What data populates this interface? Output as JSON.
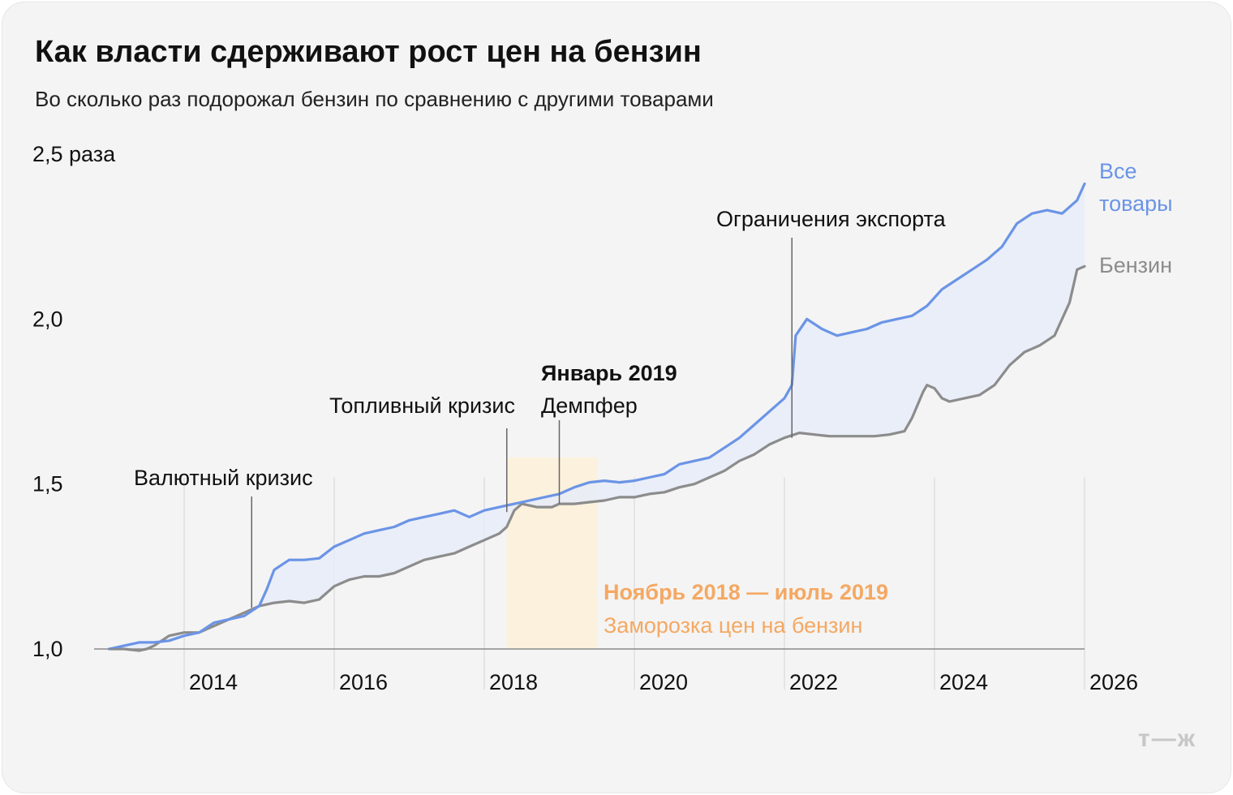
{
  "title": "Как власти сдерживают рост цен на бензин",
  "subtitle": "Во сколько раз подорожал бензин по сравнению с другими товарами",
  "logo": "т—ж",
  "colors": {
    "all_goods": "#6b94e6",
    "petrol": "#8c8c8c",
    "gap_fill": "#e6ecf8",
    "freeze_band": "#fcf1dc",
    "freeze_text": "#f5a862",
    "grid": "#d9d9d9",
    "axis": "#8a8a8a",
    "text": "#111111"
  },
  "chart_data": {
    "type": "line",
    "title": "Как власти сдерживают рост цен на бензин",
    "subtitle": "Во сколько раз подорожал бензин по сравнению с другими товарами",
    "xlim": [
      2012.8,
      2026.0
    ],
    "ylim": [
      1.0,
      2.5
    ],
    "x_ticks": [
      {
        "value": 2014,
        "label": "2014"
      },
      {
        "value": 2016,
        "label": "2016"
      },
      {
        "value": 2018,
        "label": "2018"
      },
      {
        "value": 2020,
        "label": "2020"
      },
      {
        "value": 2022,
        "label": "2022"
      },
      {
        "value": 2024,
        "label": "2024"
      },
      {
        "value": 2026,
        "label": "2026"
      }
    ],
    "y_ticks": [
      {
        "value": 1.0,
        "label": "1,0"
      },
      {
        "value": 1.5,
        "label": "1,5"
      },
      {
        "value": 2.0,
        "label": "2,0"
      },
      {
        "value": 2.5,
        "label": "2,5 раза"
      }
    ],
    "grid": "vertical",
    "series": [
      {
        "name": "Все товары",
        "legend": [
          "Все",
          "товары"
        ],
        "color": "#6b94e6",
        "points": [
          [
            2013.0,
            1.0
          ],
          [
            2013.2,
            1.01
          ],
          [
            2013.4,
            1.02
          ],
          [
            2013.6,
            1.02
          ],
          [
            2013.8,
            1.025
          ],
          [
            2014.0,
            1.04
          ],
          [
            2014.2,
            1.05
          ],
          [
            2014.4,
            1.08
          ],
          [
            2014.6,
            1.09
          ],
          [
            2014.8,
            1.1
          ],
          [
            2015.0,
            1.13
          ],
          [
            2015.1,
            1.18
          ],
          [
            2015.2,
            1.24
          ],
          [
            2015.4,
            1.27
          ],
          [
            2015.6,
            1.27
          ],
          [
            2015.8,
            1.275
          ],
          [
            2016.0,
            1.31
          ],
          [
            2016.2,
            1.33
          ],
          [
            2016.4,
            1.35
          ],
          [
            2016.6,
            1.36
          ],
          [
            2016.8,
            1.37
          ],
          [
            2017.0,
            1.39
          ],
          [
            2017.2,
            1.4
          ],
          [
            2017.4,
            1.41
          ],
          [
            2017.6,
            1.42
          ],
          [
            2017.8,
            1.4
          ],
          [
            2018.0,
            1.42
          ],
          [
            2018.2,
            1.43
          ],
          [
            2018.4,
            1.44
          ],
          [
            2018.6,
            1.45
          ],
          [
            2018.8,
            1.46
          ],
          [
            2019.0,
            1.47
          ],
          [
            2019.2,
            1.49
          ],
          [
            2019.4,
            1.505
          ],
          [
            2019.6,
            1.51
          ],
          [
            2019.8,
            1.505
          ],
          [
            2020.0,
            1.51
          ],
          [
            2020.2,
            1.52
          ],
          [
            2020.4,
            1.53
          ],
          [
            2020.6,
            1.56
          ],
          [
            2020.8,
            1.57
          ],
          [
            2021.0,
            1.58
          ],
          [
            2021.2,
            1.61
          ],
          [
            2021.4,
            1.64
          ],
          [
            2021.6,
            1.68
          ],
          [
            2021.8,
            1.72
          ],
          [
            2022.0,
            1.76
          ],
          [
            2022.1,
            1.8
          ],
          [
            2022.15,
            1.95
          ],
          [
            2022.3,
            2.0
          ],
          [
            2022.5,
            1.97
          ],
          [
            2022.7,
            1.95
          ],
          [
            2022.9,
            1.96
          ],
          [
            2023.1,
            1.97
          ],
          [
            2023.3,
            1.99
          ],
          [
            2023.5,
            2.0
          ],
          [
            2023.7,
            2.01
          ],
          [
            2023.9,
            2.04
          ],
          [
            2024.1,
            2.09
          ],
          [
            2024.3,
            2.12
          ],
          [
            2024.5,
            2.15
          ],
          [
            2024.7,
            2.18
          ],
          [
            2024.9,
            2.22
          ],
          [
            2025.1,
            2.29
          ],
          [
            2025.3,
            2.32
          ],
          [
            2025.5,
            2.33
          ],
          [
            2025.7,
            2.32
          ],
          [
            2025.9,
            2.36
          ],
          [
            2026.0,
            2.41
          ]
        ]
      },
      {
        "name": "Бензин",
        "legend": [
          "Бензин"
        ],
        "color": "#8c8c8c",
        "points": [
          [
            2013.0,
            1.0
          ],
          [
            2013.2,
            1.0
          ],
          [
            2013.4,
            0.995
          ],
          [
            2013.5,
            1.0
          ],
          [
            2013.6,
            1.01
          ],
          [
            2013.8,
            1.04
          ],
          [
            2014.0,
            1.05
          ],
          [
            2014.2,
            1.05
          ],
          [
            2014.4,
            1.07
          ],
          [
            2014.6,
            1.09
          ],
          [
            2014.8,
            1.11
          ],
          [
            2015.0,
            1.13
          ],
          [
            2015.2,
            1.14
          ],
          [
            2015.4,
            1.145
          ],
          [
            2015.6,
            1.14
          ],
          [
            2015.8,
            1.15
          ],
          [
            2016.0,
            1.19
          ],
          [
            2016.2,
            1.21
          ],
          [
            2016.4,
            1.22
          ],
          [
            2016.6,
            1.22
          ],
          [
            2016.8,
            1.23
          ],
          [
            2017.0,
            1.25
          ],
          [
            2017.2,
            1.27
          ],
          [
            2017.4,
            1.28
          ],
          [
            2017.6,
            1.29
          ],
          [
            2017.8,
            1.31
          ],
          [
            2018.0,
            1.33
          ],
          [
            2018.2,
            1.35
          ],
          [
            2018.3,
            1.37
          ],
          [
            2018.4,
            1.42
          ],
          [
            2018.5,
            1.44
          ],
          [
            2018.7,
            1.43
          ],
          [
            2018.9,
            1.43
          ],
          [
            2019.0,
            1.44
          ],
          [
            2019.2,
            1.44
          ],
          [
            2019.4,
            1.445
          ],
          [
            2019.6,
            1.45
          ],
          [
            2019.8,
            1.46
          ],
          [
            2020.0,
            1.46
          ],
          [
            2020.2,
            1.47
          ],
          [
            2020.4,
            1.475
          ],
          [
            2020.6,
            1.49
          ],
          [
            2020.8,
            1.5
          ],
          [
            2021.0,
            1.52
          ],
          [
            2021.2,
            1.54
          ],
          [
            2021.4,
            1.57
          ],
          [
            2021.6,
            1.59
          ],
          [
            2021.8,
            1.62
          ],
          [
            2022.0,
            1.64
          ],
          [
            2022.2,
            1.655
          ],
          [
            2022.4,
            1.65
          ],
          [
            2022.6,
            1.645
          ],
          [
            2022.8,
            1.645
          ],
          [
            2023.0,
            1.645
          ],
          [
            2023.2,
            1.645
          ],
          [
            2023.4,
            1.65
          ],
          [
            2023.6,
            1.66
          ],
          [
            2023.7,
            1.7
          ],
          [
            2023.85,
            1.78
          ],
          [
            2023.9,
            1.8
          ],
          [
            2024.0,
            1.79
          ],
          [
            2024.1,
            1.76
          ],
          [
            2024.2,
            1.75
          ],
          [
            2024.4,
            1.76
          ],
          [
            2024.6,
            1.77
          ],
          [
            2024.8,
            1.8
          ],
          [
            2025.0,
            1.86
          ],
          [
            2025.2,
            1.9
          ],
          [
            2025.4,
            1.92
          ],
          [
            2025.6,
            1.95
          ],
          [
            2025.8,
            2.05
          ],
          [
            2025.9,
            2.15
          ],
          [
            2026.0,
            2.16
          ]
        ]
      }
    ],
    "shaded_region": {
      "x": [
        2018.3,
        2019.5
      ],
      "label_bold": "Ноябрь 2018 — июль 2019",
      "label": "Заморозка цен на бензин"
    },
    "annotations": [
      {
        "id": "currency",
        "x": 2014.9,
        "y_label": 1.5,
        "text": [
          "Валютный кризис"
        ]
      },
      {
        "id": "fuel",
        "x": 2018.3,
        "y_label": 1.73,
        "text": [
          "Топливный кризис"
        ]
      },
      {
        "id": "damper",
        "x": 2019.0,
        "y_label": 1.84,
        "text_bold": "Январь 2019",
        "text": [
          "Демпфер"
        ]
      },
      {
        "id": "export",
        "x": 2022.1,
        "y_label": 2.17,
        "text": [
          "Ограничения экспорта"
        ]
      }
    ]
  }
}
